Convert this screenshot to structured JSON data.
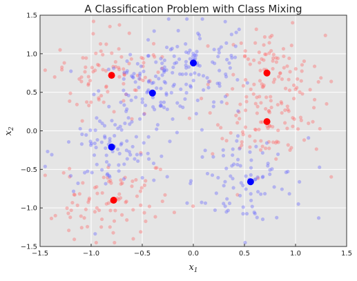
{
  "chart_data": {
    "type": "scatter",
    "title": "A Classification Problem with Class Mixing",
    "xlabel_var": "x",
    "xlabel_sub": "1",
    "ylabel_var": "x",
    "ylabel_sub": "2",
    "xlim": [
      -1.5,
      1.5
    ],
    "ylim": [
      -1.5,
      1.5
    ],
    "xticks": [
      -1.5,
      -1.0,
      -0.5,
      0.0,
      0.5,
      1.0,
      1.5
    ],
    "xtick_labels": [
      "−1.5",
      "−1.0",
      "−0.5",
      "0.0",
      "0.5",
      "1.0",
      "1.5"
    ],
    "yticks": [
      -1.5,
      -1.0,
      -0.5,
      0.0,
      0.5,
      1.0,
      1.5
    ],
    "ytick_labels": [
      "−1.5",
      "−1.0",
      "−0.5",
      "0.0",
      "0.5",
      "1.0",
      "1.5"
    ],
    "grid": true,
    "background": "#e5e5e5",
    "grid_color": "#ffffff",
    "series": [
      {
        "color": "#ff0000",
        "role": "class centers",
        "points": [
          [
            -0.8,
            0.72
          ],
          [
            0.72,
            0.75
          ],
          [
            0.72,
            0.12
          ],
          [
            -0.78,
            -0.9
          ]
        ]
      },
      {
        "color": "#0000ff",
        "role": "class centers",
        "points": [
          [
            0.0,
            0.88
          ],
          [
            -0.4,
            0.49
          ],
          [
            -0.8,
            -0.21
          ],
          [
            0.56,
            -0.66
          ]
        ]
      }
    ],
    "sample_points": {
      "approx_count_per_class": 350,
      "red_clusters": [
        [
          -0.8,
          0.72
        ],
        [
          0.72,
          0.75
        ],
        [
          0.72,
          0.12
        ],
        [
          -0.78,
          -0.9
        ]
      ],
      "blue_clusters": [
        [
          0.0,
          0.88
        ],
        [
          -0.4,
          0.49
        ],
        [
          -0.8,
          -0.21
        ],
        [
          0.56,
          -0.66
        ]
      ],
      "red_color": "#ff6a6a",
      "blue_color": "#6a6aff",
      "opacity": 0.4
    }
  }
}
